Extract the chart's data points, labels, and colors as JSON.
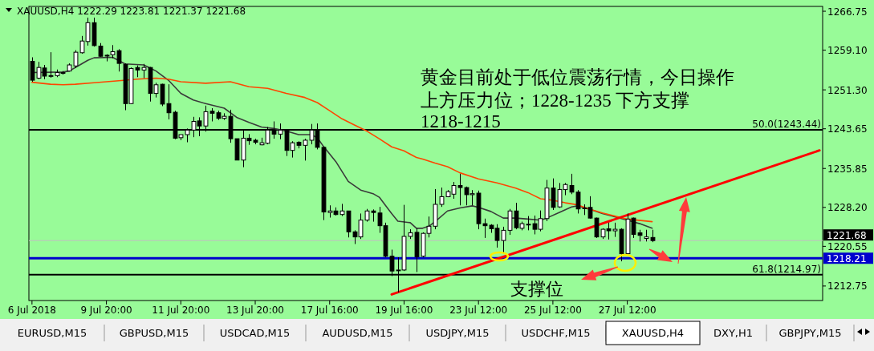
{
  "chart_data": {
    "type": "candlestick",
    "title": "XAUUSD,H4  1222.29 1223.81 1221.37 1221.68",
    "categories": [
      "6 Jul 2018",
      null,
      null,
      null,
      null,
      null,
      null,
      null,
      null,
      null,
      null,
      null,
      "9 Jul 20:00",
      null,
      null,
      null,
      null,
      null,
      null,
      null,
      null,
      null,
      null,
      null,
      "11 Jul 20:00",
      null,
      null,
      null,
      null,
      null,
      null,
      null,
      null,
      null,
      null,
      null,
      "13 Jul 20:00",
      null,
      null,
      null,
      null,
      null,
      null,
      null,
      null,
      null,
      null,
      null,
      "17 Jul 16:00",
      null,
      null,
      null,
      null,
      null,
      null,
      null,
      null,
      null,
      null,
      null,
      "19 Jul 16:00",
      null,
      null,
      null,
      null,
      null,
      null,
      null,
      null,
      null,
      null,
      null,
      "23 Jul 12:00",
      null,
      null,
      null,
      null,
      null,
      null,
      null,
      null,
      null,
      null,
      null,
      "25 Jul 12:00",
      null,
      null,
      null,
      null,
      null,
      null,
      null,
      null,
      null,
      null,
      null,
      "27 Jul 12:00",
      null,
      null,
      null,
      null,
      null,
      null,
      null,
      null,
      null,
      null,
      null,
      null,
      null,
      null,
      null,
      null,
      null,
      null,
      null,
      null,
      null,
      null,
      null,
      null,
      null,
      null,
      null,
      null,
      null,
      null,
      null
    ],
    "ohlc": [
      [
        1256.9,
        1257.7,
        1252.9,
        1253.2
      ],
      [
        1253.6,
        1256.8,
        1253.4,
        1255.7
      ],
      [
        1255.6,
        1256.2,
        1253.4,
        1254.0
      ],
      [
        1254.0,
        1258.7,
        1253.7,
        1254.1
      ],
      [
        1254.1,
        1255.3,
        1253.8,
        1254.7
      ],
      [
        1254.6,
        1255.0,
        1254.3,
        1254.7
      ],
      [
        1255.0,
        1256.5,
        1254.9,
        1256.2
      ],
      [
        1256.0,
        1259.1,
        1255.6,
        1258.7
      ],
      [
        1258.6,
        1261.9,
        1258.4,
        1260.9
      ],
      [
        1260.8,
        1265.5,
        1260.0,
        1264.5
      ],
      [
        1264.5,
        1265.5,
        1259.8,
        1260.0
      ],
      [
        1259.9,
        1260.5,
        1257.8,
        1257.9
      ],
      [
        1258.1,
        1258.3,
        1256.9,
        1258.0
      ],
      [
        1258.2,
        1260.1,
        1257.5,
        1258.8
      ],
      [
        1259.0,
        1259.3,
        1254.9,
        1256.5
      ],
      [
        1256.3,
        1256.5,
        1247.3,
        1248.6
      ],
      [
        1248.6,
        1255.7,
        1248.5,
        1255.5
      ],
      [
        1255.7,
        1256.1,
        1253.8,
        1255.2
      ],
      [
        1255.2,
        1256.4,
        1253.6,
        1255.7
      ],
      [
        1255.7,
        1255.8,
        1249.0,
        1250.6
      ],
      [
        1250.6,
        1252.7,
        1249.8,
        1252.3
      ],
      [
        1252.4,
        1252.5,
        1248.1,
        1248.5
      ],
      [
        1248.6,
        1252.4,
        1245.5,
        1246.8
      ],
      [
        1246.9,
        1247.2,
        1241.6,
        1241.8
      ],
      [
        1241.9,
        1242.5,
        1241.4,
        1242.5
      ],
      [
        1242.5,
        1243.7,
        1241.0,
        1243.4
      ],
      [
        1243.4,
        1246.0,
        1242.0,
        1245.1
      ],
      [
        1245.2,
        1245.9,
        1242.2,
        1244.2
      ],
      [
        1244.2,
        1248.2,
        1243.1,
        1247.0
      ],
      [
        1247.1,
        1247.7,
        1245.1,
        1246.7
      ],
      [
        1246.8,
        1247.2,
        1245.4,
        1245.7
      ],
      [
        1245.7,
        1246.7,
        1245.4,
        1246.1
      ],
      [
        1246.1,
        1247.4,
        1240.9,
        1241.7
      ],
      [
        1241.7,
        1241.7,
        1237.5,
        1237.5
      ],
      [
        1237.5,
        1243.4,
        1236.1,
        1241.8
      ],
      [
        1241.8,
        1242.6,
        1240.5,
        1241.3
      ],
      [
        1241.4,
        1241.7,
        1240.6,
        1241.0
      ],
      [
        1240.5,
        1241.9,
        1240.4,
        1240.9
      ],
      [
        1240.8,
        1244.0,
        1240.6,
        1243.4
      ],
      [
        1243.4,
        1245.1,
        1241.7,
        1242.6
      ],
      [
        1242.6,
        1244.7,
        1241.6,
        1243.4
      ],
      [
        1243.4,
        1243.6,
        1238.3,
        1239.4
      ],
      [
        1239.4,
        1241.2,
        1238.0,
        1240.9
      ],
      [
        1241.0,
        1241.2,
        1239.8,
        1240.4
      ],
      [
        1240.4,
        1241.7,
        1237.4,
        1241.4
      ],
      [
        1241.4,
        1244.6,
        1240.6,
        1243.4
      ],
      [
        1243.4,
        1244.7,
        1239.6,
        1240.0
      ],
      [
        1240.0,
        1240.1,
        1225.7,
        1227.3
      ],
      [
        1227.2,
        1228.6,
        1226.2,
        1227.5
      ],
      [
        1227.5,
        1228.2,
        1226.6,
        1226.8
      ],
      [
        1226.8,
        1228.9,
        1226.5,
        1227.5
      ],
      [
        1227.5,
        1227.5,
        1222.3,
        1223.4
      ],
      [
        1223.4,
        1223.7,
        1221.0,
        1222.4
      ],
      [
        1222.4,
        1227.0,
        1222.0,
        1225.7
      ],
      [
        1225.7,
        1227.9,
        1225.4,
        1227.5
      ],
      [
        1227.5,
        1227.8,
        1225.4,
        1227.2
      ],
      [
        1227.1,
        1228.3,
        1223.2,
        1224.6
      ],
      [
        1224.6,
        1225.2,
        1218.4,
        1218.6
      ],
      [
        1218.6,
        1219.9,
        1214.7,
        1215.7
      ],
      [
        1215.8,
        1218.4,
        1211.5,
        1215.9
      ],
      [
        1215.9,
        1228.7,
        1215.7,
        1222.5
      ],
      [
        1222.5,
        1223.9,
        1222.0,
        1223.2
      ],
      [
        1223.3,
        1224.1,
        1215.5,
        1218.5
      ],
      [
        1218.6,
        1223.3,
        1218.4,
        1223.1
      ],
      [
        1223.1,
        1226.4,
        1222.3,
        1224.5
      ],
      [
        1224.5,
        1231.8,
        1223.9,
        1228.8
      ],
      [
        1228.8,
        1232.1,
        1228.3,
        1230.3
      ],
      [
        1230.3,
        1231.6,
        1230.2,
        1231.3
      ],
      [
        1230.8,
        1233.2,
        1229.9,
        1232.5
      ],
      [
        1232.5,
        1234.8,
        1228.6,
        1232.1
      ],
      [
        1232.1,
        1232.3,
        1228.6,
        1230.7
      ],
      [
        1230.7,
        1231.6,
        1228.6,
        1230.9
      ],
      [
        1231.0,
        1231.5,
        1223.9,
        1225.0
      ],
      [
        1225.0,
        1226.0,
        1222.2,
        1224.6
      ],
      [
        1224.7,
        1224.9,
        1223.2,
        1224.0
      ],
      [
        1224.1,
        1224.9,
        1220.3,
        1221.7
      ],
      [
        1221.7,
        1224.4,
        1219.1,
        1223.7
      ],
      [
        1223.7,
        1227.9,
        1222.8,
        1227.5
      ],
      [
        1227.5,
        1229.1,
        1223.9,
        1224.2
      ],
      [
        1224.1,
        1225.4,
        1223.7,
        1225.0
      ],
      [
        1224.9,
        1226.5,
        1223.7,
        1224.9
      ],
      [
        1225.0,
        1226.6,
        1222.9,
        1223.9
      ],
      [
        1223.9,
        1227.6,
        1223.5,
        1226.0
      ],
      [
        1226.0,
        1233.6,
        1225.5,
        1232.0
      ],
      [
        1232.0,
        1233.9,
        1227.7,
        1228.2
      ],
      [
        1228.3,
        1233.0,
        1228.1,
        1231.7
      ],
      [
        1231.7,
        1233.0,
        1230.6,
        1232.7
      ],
      [
        1232.5,
        1234.8,
        1230.8,
        1231.2
      ],
      [
        1231.2,
        1231.6,
        1227.0,
        1227.9
      ],
      [
        1228.0,
        1228.8,
        1226.7,
        1228.1
      ],
      [
        1228.2,
        1230.4,
        1226.0,
        1226.1
      ],
      [
        1226.1,
        1226.2,
        1222.2,
        1222.4
      ],
      [
        1222.4,
        1224.1,
        1222.0,
        1223.9
      ],
      [
        1224.0,
        1225.2,
        1221.9,
        1223.6
      ],
      [
        1223.6,
        1225.2,
        1222.4,
        1223.9
      ],
      [
        1223.9,
        1224.1,
        1217.6,
        1219.1
      ],
      [
        1219.1,
        1227.0,
        1218.9,
        1225.9
      ],
      [
        1226.1,
        1226.2,
        1222.2,
        1222.9
      ],
      [
        1223.2,
        1223.8,
        1221.5,
        1222.7
      ],
      [
        1222.1,
        1223.8,
        1221.5,
        1222.4
      ],
      [
        1222.29,
        1223.81,
        1221.37,
        1221.68
      ],
      null,
      null,
      null,
      null,
      null,
      null,
      null,
      null,
      null,
      null,
      null,
      null,
      null,
      null,
      null,
      null,
      null,
      null,
      null,
      null,
      null,
      null,
      null,
      null,
      null,
      null,
      null
    ],
    "series": [
      {
        "type": "line",
        "color": "#3a3a3a",
        "values": [
          1254.7,
          null,
          null,
          null,
          null,
          1254.8,
          1255.0,
          null,
          1256.4,
          1257.1,
          1257.6,
          null,
          null,
          1257.7,
          null,
          1256.4,
          null,
          null,
          1256.2,
          1255.6,
          1255.0,
          null,
          1253.2,
          null,
          1250.6,
          null,
          1249.3,
          null,
          1248.6,
          null,
          null,
          1247.7,
          null,
          1245.9,
          null,
          1244.9,
          null,
          1244.0,
          null,
          1243.7,
          null,
          1243.2,
          null,
          1242.5,
          null,
          1242.5,
          1241.9,
          1240.2,
          null,
          1237.2,
          null,
          1233.3,
          null,
          1231.6,
          null,
          1230.9,
          1230.2,
          null,
          1227.0,
          1225.5,
          null,
          1225.2,
          1224.1,
          1224.1,
          1224.5,
          1225.4,
          null,
          1227.5,
          null,
          1228.1,
          null,
          1228.5,
          1228.2,
          null,
          1227.4,
          null,
          1226.1,
          null,
          1226.1,
          null,
          1225.9,
          null,
          1225.7,
          1226.1,
          null,
          1227.2,
          null,
          1228.3,
          1228.5,
          null,
          1227.8,
          null,
          1227.0,
          null,
          null,
          null,
          1225.7,
          null,
          1225.0,
          null,
          1224.1,
          null,
          null,
          null,
          null,
          null,
          null,
          null,
          null,
          null,
          null,
          null,
          null,
          null,
          null,
          null,
          null,
          null,
          null,
          null,
          null,
          null,
          null,
          null,
          null,
          null,
          null,
          null
        ]
      },
      {
        "type": "line",
        "color": "#ff4500",
        "values": [
          1252.8,
          null,
          null,
          1252.4,
          null,
          1252.3,
          null,
          1252.4,
          null,
          null,
          1252.7,
          null,
          null,
          null,
          1253.1,
          null,
          null,
          1253.4,
          null,
          null,
          1253.6,
          null,
          1253.4,
          null,
          1252.9,
          null,
          null,
          null,
          1252.6,
          null,
          null,
          null,
          1252.9,
          null,
          null,
          1251.9,
          null,
          null,
          1251.6,
          null,
          null,
          1250.6,
          null,
          null,
          1249.8,
          null,
          1248.8,
          null,
          1247.2,
          null,
          1245.6,
          null,
          1244.4,
          null,
          1243.2,
          null,
          1241.7,
          null,
          1240.1,
          null,
          1239.3,
          null,
          1238.0,
          1237.7,
          null,
          1236.9,
          null,
          1236.2,
          null,
          1235.0,
          null,
          null,
          1233.8,
          null,
          null,
          1233.0,
          null,
          null,
          1232.0,
          null,
          1231.1,
          null,
          1229.9,
          null,
          1229.6,
          null,
          1229.1,
          null,
          1228.7,
          null,
          1227.8,
          null,
          1227.1,
          null,
          null,
          null,
          1225.9,
          null,
          null,
          null,
          1225.4,
          null,
          null,
          null,
          null,
          null,
          null,
          null,
          null,
          null,
          null,
          null,
          null,
          null,
          null,
          null,
          null,
          null,
          null,
          null,
          null,
          null,
          null,
          null,
          null,
          null,
          null,
          null
        ]
      },
      {
        "type": "line",
        "color": "#ff0000",
        "values": [
          null,
          null,
          null,
          null,
          null,
          null,
          null,
          null,
          null,
          null,
          null,
          null,
          null,
          null,
          null,
          null,
          null,
          null,
          null,
          null,
          null,
          null,
          null,
          null,
          null,
          null,
          null,
          null,
          null,
          null,
          null,
          null,
          null,
          null,
          null,
          null,
          null,
          null,
          null,
          null,
          null,
          null,
          null,
          null,
          null,
          null,
          null,
          null,
          null,
          null,
          null,
          null,
          null,
          null,
          null,
          null,
          null,
          null,
          1211.1,
          null,
          null,
          null,
          null,
          null,
          null,
          null,
          null,
          null,
          null,
          null,
          null,
          null,
          null,
          null,
          null,
          null,
          null,
          null,
          null,
          null,
          null,
          null,
          null,
          null,
          null,
          null,
          null,
          null,
          null,
          null,
          null,
          null,
          null,
          null,
          null,
          null,
          null,
          null,
          null,
          null,
          null,
          null,
          null,
          null,
          null,
          null,
          null,
          null,
          null,
          null,
          null,
          null,
          null,
          null,
          null,
          null,
          null,
          null,
          null,
          null,
          null,
          null,
          null,
          null,
          null,
          null,
          null,
          1239.4
        ]
      }
    ],
    "ylim": [
      1209.9,
      1267.7
    ],
    "yticks": [
      1266.75,
      {
        "value": 1259.1,
        "label": "1259.10"
      },
      {
        "value": 1251.3,
        "label": "1251.30"
      },
      1243.65,
      1235.85,
      {
        "value": 1228.2,
        "label": "1228.20"
      },
      1220.55,
      1212.75
    ],
    "ref_lines": [
      {
        "axis": "y",
        "value": 1243.44,
        "label": "50.0(1243.44)",
        "color": "#000000"
      },
      {
        "axis": "y",
        "value": 1214.97,
        "label": "61.8(1214.97)",
        "color": "#000000"
      },
      {
        "axis": "y",
        "value": 1218.21,
        "label": "1218.21",
        "color": "#0000cd"
      },
      {
        "axis": "y",
        "value": 1221.68,
        "label": "1221.68",
        "color": "#c0c0c0"
      }
    ],
    "annotations": [
      "黄金目前处于低位震荡行情，今日操作",
      "上方压力位；1228-1235    下方支撑",
      "1218-1215",
      "支撑位",
      "EURUSD,M15",
      "GBPUSD,M15",
      "USDCAD,M15",
      "AUDUSD,M15",
      "USDJPY,M15",
      "USDCHF,M15",
      "XAUUSD,H4",
      "DXY,H1",
      "GBPJPY,M15"
    ]
  }
}
